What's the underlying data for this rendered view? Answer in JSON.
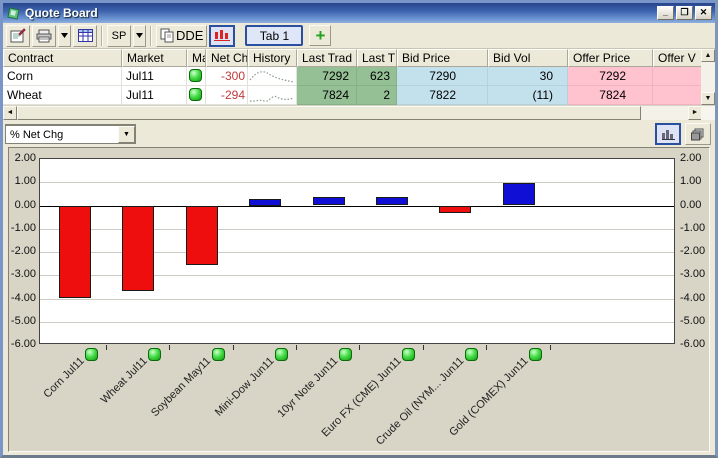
{
  "window": {
    "title": "Quote Board"
  },
  "titlebar": {
    "icons": [
      "app-logo",
      "minimize",
      "maximize",
      "close"
    ],
    "minimize_glyph": "_",
    "maximize_glyph": "❐",
    "close_glyph": "✕"
  },
  "toolbar": {
    "properties_button": "properties-icon",
    "print_button": "printer-icon",
    "grid_button": "grid-icon",
    "sp_label": "SP",
    "dde_label": "DDE",
    "chart_button": "chart-icon",
    "tab_label": "Tab 1",
    "add_tab_label": "+"
  },
  "table": {
    "columns": [
      "Contract",
      "Market",
      "Ma",
      "Net Ch",
      "History",
      "Last Trad",
      "Last T",
      "Bid Price",
      "Bid Vol",
      "Offer Price",
      "Offer V"
    ],
    "rows": [
      {
        "contract": "Corn",
        "market": "Jul11",
        "status": "green-led",
        "net_chg": "-300",
        "last_trade": "7292",
        "last_t": "623",
        "bid_price": "7290",
        "bid_vol": "30",
        "offer_price": "7292",
        "offer_vol": ""
      },
      {
        "contract": "Wheat",
        "market": "Jul11",
        "status": "green-led",
        "net_chg": "-294",
        "last_trade": "7824",
        "last_t": "2",
        "bid_price": "7822",
        "bid_vol": "(11)",
        "offer_price": "7824",
        "offer_vol": ""
      }
    ],
    "cell_colors": {
      "last_trade_bg": "#95BF95",
      "bid_bg": "#C3E1EC",
      "offer_bg": "#FFC2CF",
      "net_chg_color": "#C03A3A"
    }
  },
  "chart_panel": {
    "metric_selector_value": "% Net Chg",
    "view_buttons": [
      "bar-chart-icon",
      "layers-icon"
    ]
  },
  "chart_data": {
    "type": "bar",
    "title": "",
    "xlabel": "",
    "ylabel": "",
    "categories": [
      "Corn Jul11",
      "Wheat Jul11",
      "Soybean May11",
      "Mini-Dow Jun11",
      "10yr Note Jun11",
      "Euro FX (CME) Jun11",
      "Crude Oil (NYM... Jun11",
      "Gold (COMEX) Jun11"
    ],
    "values": [
      -3.95,
      -3.65,
      -2.55,
      0.3,
      0.35,
      0.35,
      -0.3,
      0.95
    ],
    "ylim": [
      -6,
      2
    ],
    "ytick_step": 1,
    "grid": true,
    "legend": "none",
    "positive_color": "#0F0FD6",
    "negative_color": "#EE0E0E",
    "marker": "green-led"
  }
}
